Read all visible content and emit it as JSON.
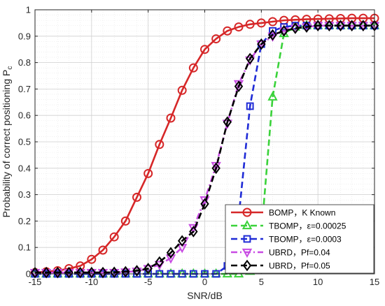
{
  "chart_data": {
    "type": "line",
    "xlabel": "SNR/dB",
    "ylabel": "Probability of correct positioning P",
    "ylabel_sub": "c",
    "xlim": [
      -15,
      15
    ],
    "ylim": [
      0,
      1
    ],
    "xticks": [
      -15,
      -10,
      -5,
      0,
      5,
      10,
      15
    ],
    "yticks": [
      0,
      0.1,
      0.2,
      0.3,
      0.4,
      0.5,
      0.6,
      0.7,
      0.8,
      0.9,
      1
    ],
    "ytick_labels": [
      "0",
      "0.1",
      "0.2",
      "0.3",
      "0.4",
      "0.5",
      "0.6",
      "0.7",
      "0.8",
      "0.9",
      "1"
    ],
    "grid": true,
    "legend_position": "lower-right",
    "x": [
      -15,
      -14,
      -13,
      -12,
      -11,
      -10,
      -9,
      -8,
      -7,
      -6,
      -5,
      -4,
      -3,
      -2,
      -1,
      0,
      1,
      2,
      3,
      4,
      5,
      6,
      7,
      8,
      9,
      10,
      11,
      12,
      13,
      14,
      15
    ],
    "series": [
      {
        "name": "BOMP，K Known",
        "color": "#d62728",
        "dash": "solid",
        "marker": "circle",
        "values": [
          0.005,
          0.008,
          0.012,
          0.02,
          0.03,
          0.055,
          0.09,
          0.14,
          0.2,
          0.29,
          0.38,
          0.49,
          0.59,
          0.695,
          0.78,
          0.85,
          0.89,
          0.92,
          0.935,
          0.945,
          0.95,
          0.955,
          0.96,
          0.962,
          0.964,
          0.965,
          0.966,
          0.967,
          0.968,
          0.968,
          0.968
        ]
      },
      {
        "name": "TBOMP，ε=0.00025",
        "color": "#3ad23a",
        "dash": "dashed",
        "marker": "triangle-up",
        "values": [
          0,
          0,
          0,
          0,
          0,
          0,
          0,
          0,
          0,
          0,
          0,
          0,
          0,
          0,
          0,
          0,
          0,
          0,
          0,
          0.01,
          0.15,
          0.67,
          0.91,
          0.935,
          0.94,
          0.94,
          0.94,
          0.94,
          0.94,
          0.94,
          0.94
        ]
      },
      {
        "name": "TBOMP，ε=0.0003",
        "color": "#1f2bd6",
        "dash": "dashed",
        "marker": "square",
        "values": [
          0,
          0,
          0,
          0,
          0,
          0,
          0,
          0,
          0,
          0,
          0,
          0,
          0,
          0,
          0,
          0,
          0,
          0.03,
          0.215,
          0.635,
          0.87,
          0.92,
          0.935,
          0.94,
          0.94,
          0.94,
          0.94,
          0.94,
          0.94,
          0.94,
          0.94
        ]
      },
      {
        "name": "UBRD，Pf=0.04",
        "color": "#c84be3",
        "dash": "dashdot",
        "marker": "triangle-down",
        "values": [
          0.005,
          0.005,
          0.005,
          0.005,
          0.005,
          0.005,
          0.005,
          0.005,
          0.007,
          0.01,
          0.02,
          0.035,
          0.06,
          0.1,
          0.175,
          0.28,
          0.41,
          0.57,
          0.72,
          0.81,
          0.87,
          0.9,
          0.92,
          0.93,
          0.935,
          0.94,
          0.94,
          0.94,
          0.94,
          0.94,
          0.94
        ]
      },
      {
        "name": "UBRD，Pf=0.05",
        "color": "#000000",
        "dash": "dashed",
        "marker": "diamond",
        "values": [
          0.005,
          0.005,
          0.005,
          0.005,
          0.005,
          0.005,
          0.005,
          0.006,
          0.008,
          0.012,
          0.02,
          0.045,
          0.08,
          0.125,
          0.16,
          0.265,
          0.4,
          0.575,
          0.71,
          0.815,
          0.87,
          0.905,
          0.92,
          0.93,
          0.935,
          0.94,
          0.94,
          0.94,
          0.94,
          0.94,
          0.94
        ]
      }
    ]
  }
}
